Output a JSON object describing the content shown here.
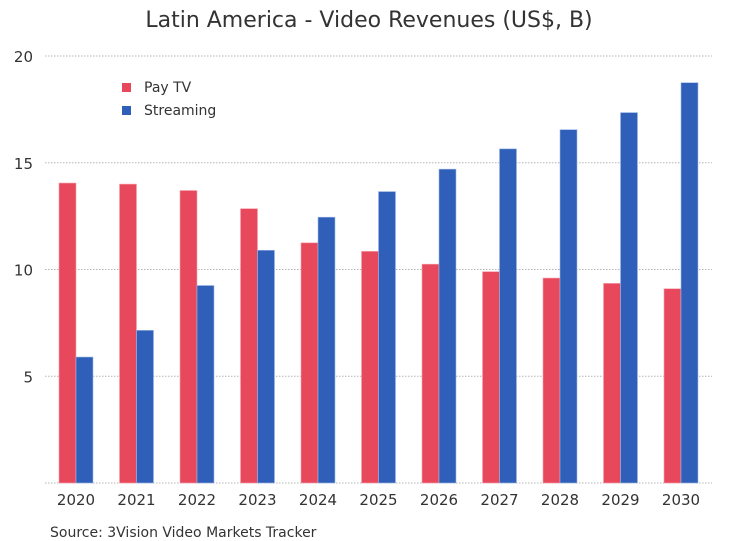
{
  "chart_data": {
    "type": "bar",
    "title": "Latin America - Video Revenues (US$, B)",
    "xlabel": "",
    "ylabel": "",
    "categories": [
      "2020",
      "2021",
      "2022",
      "2023",
      "2024",
      "2025",
      "2026",
      "2027",
      "2028",
      "2029",
      "2030"
    ],
    "series": [
      {
        "name": "Pay TV",
        "color": "#e8485c",
        "values": [
          14.05,
          14.0,
          13.7,
          12.85,
          11.25,
          10.85,
          10.25,
          9.9,
          9.6,
          9.35,
          9.1
        ]
      },
      {
        "name": "Streaming",
        "color": "#2f5fb8",
        "values": [
          5.9,
          7.15,
          9.25,
          10.9,
          12.45,
          13.65,
          14.7,
          15.65,
          16.55,
          17.35,
          18.75
        ]
      }
    ],
    "ylim": [
      0,
      20
    ],
    "yticks": [
      5,
      10,
      15,
      20
    ],
    "ytick_labels": [
      "5",
      "10",
      "15",
      "20"
    ],
    "grid": true,
    "legend_position": "top-left",
    "source": "Source: 3Vision Video Markets Tracker"
  }
}
